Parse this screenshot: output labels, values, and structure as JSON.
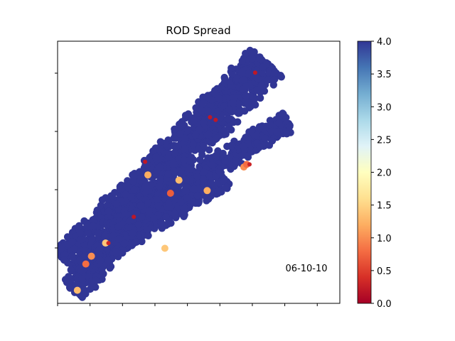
{
  "chart_data": {
    "type": "scatter",
    "title": "ROD Spread",
    "xlabel": "",
    "ylabel": "",
    "annotation": "06-10-10",
    "grid": false,
    "xticks_count": 9,
    "yticks_count": 4,
    "colorbar": {
      "colormap": "RdYlBu",
      "range": [
        0.0,
        4.0
      ],
      "ticks": [
        "0.0",
        "0.5",
        "1.0",
        "1.5",
        "2.0",
        "2.5",
        "3.0",
        "3.5",
        "4.0"
      ],
      "stops": [
        "#a50026",
        "#d73027",
        "#f46d43",
        "#fdae61",
        "#fee090",
        "#ffffbf",
        "#e0f3f8",
        "#abd9e9",
        "#74add1",
        "#4575b4",
        "#313695"
      ]
    },
    "clusters": [
      {
        "from": [
          0.04,
          0.15
        ],
        "to": [
          0.74,
          0.92
        ],
        "width": 0.13,
        "count": 1400,
        "value": 4.0
      },
      {
        "from": [
          0.45,
          0.45
        ],
        "to": [
          0.82,
          0.7
        ],
        "width": 0.07,
        "count": 350,
        "value": 4.0
      },
      {
        "from": [
          0.2,
          0.25
        ],
        "to": [
          0.58,
          0.5
        ],
        "width": 0.11,
        "count": 550,
        "value": 4.0
      },
      {
        "from": [
          0.05,
          0.05
        ],
        "to": [
          0.3,
          0.33
        ],
        "width": 0.09,
        "count": 300,
        "value": 4.0
      }
    ],
    "highlights": [
      {
        "x": 0.32,
        "y": 0.49,
        "value": 1.2
      },
      {
        "x": 0.43,
        "y": 0.47,
        "value": 1.3
      },
      {
        "x": 0.53,
        "y": 0.43,
        "value": 1.2
      },
      {
        "x": 0.66,
        "y": 0.52,
        "value": 1.0
      },
      {
        "x": 0.67,
        "y": 0.53,
        "value": 0.8
      },
      {
        "x": 0.68,
        "y": 0.53,
        "value": 0.3
      },
      {
        "x": 0.4,
        "y": 0.42,
        "value": 0.7
      },
      {
        "x": 0.17,
        "y": 0.23,
        "value": 1.4
      },
      {
        "x": 0.12,
        "y": 0.18,
        "value": 1.0
      },
      {
        "x": 0.07,
        "y": 0.05,
        "value": 1.3
      },
      {
        "x": 0.38,
        "y": 0.21,
        "value": 1.4
      },
      {
        "x": 0.1,
        "y": 0.15,
        "value": 0.8
      },
      {
        "x": 0.31,
        "y": 0.54,
        "value": 0.2
      },
      {
        "x": 0.56,
        "y": 0.7,
        "value": 0.2
      },
      {
        "x": 0.7,
        "y": 0.88,
        "value": 0.2
      },
      {
        "x": 0.54,
        "y": 0.71,
        "value": 0.2
      },
      {
        "x": 0.18,
        "y": 0.23,
        "value": 0.3
      },
      {
        "x": 0.27,
        "y": 0.33,
        "value": 0.2
      }
    ]
  }
}
